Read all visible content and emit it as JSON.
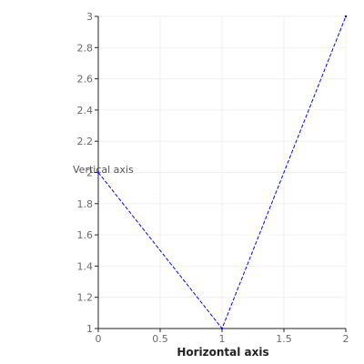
{
  "chart_data": {
    "type": "line",
    "title": "",
    "xlabel": "Horizontal axis",
    "ylabel": "Vertical axis",
    "xlim": [
      0,
      2
    ],
    "ylim": [
      1,
      3
    ],
    "grid": true,
    "x_ticks": [
      {
        "value": 0,
        "label": "0"
      },
      {
        "value": 0.5,
        "label": "0.5"
      },
      {
        "value": 1,
        "label": "1"
      },
      {
        "value": 1.5,
        "label": "1.5"
      },
      {
        "value": 2,
        "label": "2"
      }
    ],
    "y_ticks": [
      {
        "value": 1,
        "label": "1"
      },
      {
        "value": 1.2,
        "label": "1.2"
      },
      {
        "value": 1.4,
        "label": "1.4"
      },
      {
        "value": 1.6,
        "label": "1.6"
      },
      {
        "value": 1.8,
        "label": "1.8"
      },
      {
        "value": 2,
        "label": "2"
      },
      {
        "value": 2.2,
        "label": "2.2"
      },
      {
        "value": 2.4,
        "label": "2.4"
      },
      {
        "value": 2.6,
        "label": "2.6"
      },
      {
        "value": 2.8,
        "label": "2.8"
      },
      {
        "value": 3,
        "label": "3"
      }
    ],
    "series": [
      {
        "x": [
          0,
          1,
          2
        ],
        "y": [
          2,
          1,
          3
        ],
        "color": "#0000ff",
        "dash": "dashed"
      }
    ]
  }
}
